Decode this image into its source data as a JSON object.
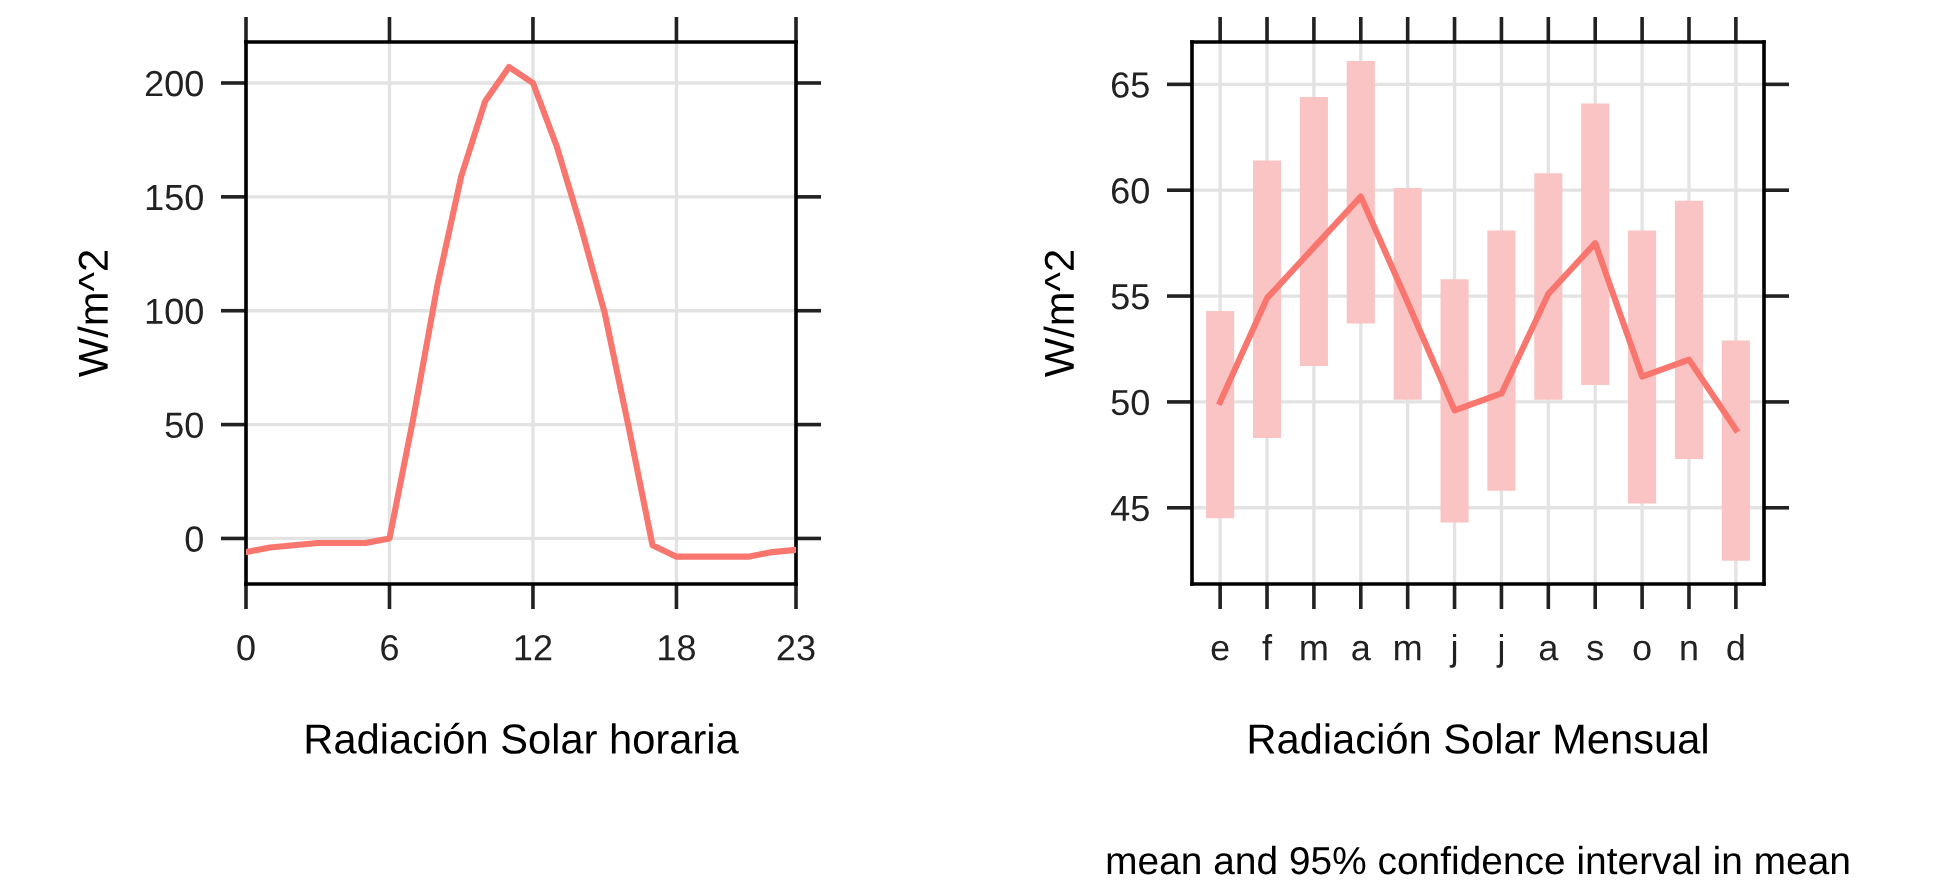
{
  "chart_data": [
    {
      "type": "line",
      "xlabel": "Radiación Solar horaria",
      "ylabel": "W/m^2",
      "x": [
        0,
        1,
        2,
        3,
        4,
        5,
        6,
        7,
        8,
        9,
        10,
        11,
        12,
        13,
        14,
        15,
        16,
        17,
        18,
        19,
        20,
        21,
        22,
        23
      ],
      "series": [
        {
          "color": "#f8766d",
          "values": [
            -6,
            -4,
            -3,
            -2,
            -2,
            -2,
            0,
            53,
            111,
            159,
            192,
            207,
            200,
            172,
            137,
            99,
            49,
            -3,
            -8,
            -8,
            -8,
            -8,
            -6,
            -5
          ]
        }
      ],
      "xlim": [
        0,
        23
      ],
      "xticks": [
        0,
        6,
        12,
        18,
        23
      ],
      "ylim": [
        -20,
        218
      ],
      "yticks": [
        0,
        50,
        100,
        150,
        200
      ],
      "grid": true
    },
    {
      "type": "line",
      "xlabel": "Radiación Solar Mensual",
      "ylabel": "W/m^2",
      "categories": [
        "e",
        "f",
        "m",
        "a",
        "m",
        "j",
        "j",
        "a",
        "s",
        "o",
        "n",
        "d"
      ],
      "series": [
        {
          "type": "bar",
          "color": "#fbc4c4",
          "base": [
            44.5,
            48.3,
            51.7,
            53.7,
            50.1,
            44.3,
            45.8,
            50.1,
            50.8,
            45.2,
            47.3,
            42.5
          ],
          "values": [
            9.8,
            13.1,
            12.7,
            12.4,
            10.0,
            11.5,
            12.3,
            10.7,
            13.3,
            12.9,
            12.2,
            10.4
          ]
        },
        {
          "type": "line",
          "color": "#f8766d",
          "values": [
            50.0,
            54.9,
            57.3,
            59.7,
            54.7,
            49.6,
            50.4,
            55.1,
            57.5,
            51.2,
            52.0,
            48.7
          ]
        }
      ],
      "ylim": [
        41.4,
        67.0
      ],
      "yticks": [
        45,
        50,
        55,
        60,
        65
      ],
      "grid": true,
      "annotations": [
        "mean and 95% confidence interval in mean"
      ]
    }
  ]
}
